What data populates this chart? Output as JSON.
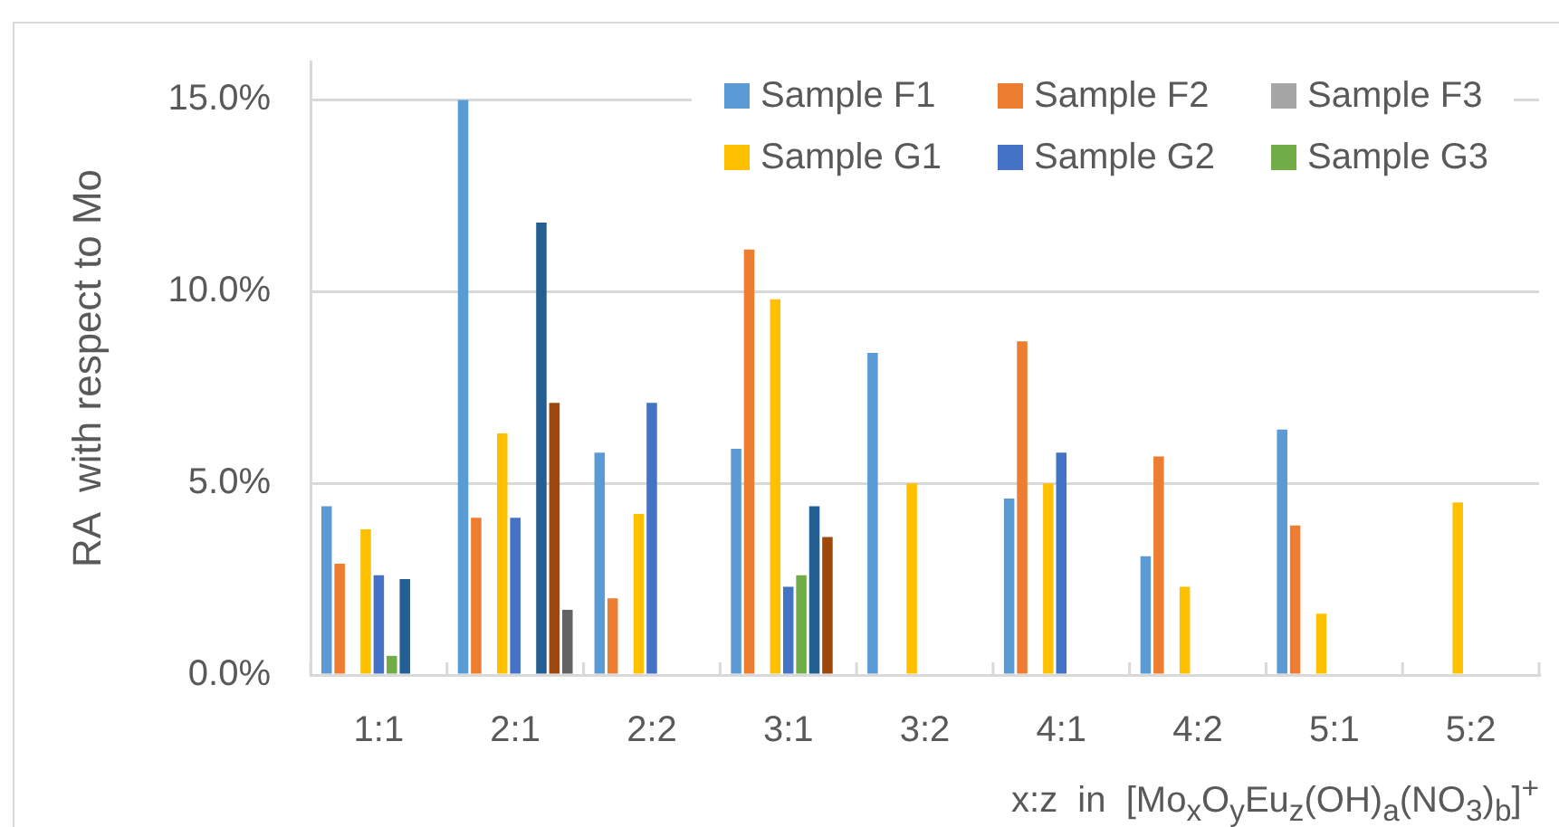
{
  "chart_data": {
    "type": "bar",
    "ylabel": "RA  with respect to Mo",
    "xlabel": "x:z  in  [Mo$_{x}$O$_{y}$Eu$_{z}$(OH)$_{a}$(NO$_{3}$)$_{b}$]$^{+}$",
    "categories": [
      "1:1",
      "2:1",
      "2:2",
      "3:1",
      "3:2",
      "4:1",
      "4:2",
      "5:1",
      "5:2"
    ],
    "series": [
      {
        "name": "Sample F1",
        "color": "#5b9bd5",
        "values": [
          4.4,
          15.0,
          5.8,
          5.9,
          8.4,
          4.6,
          3.1,
          6.4,
          null
        ]
      },
      {
        "name": "Sample F2",
        "color": "#ed7d31",
        "values": [
          2.9,
          4.1,
          2.0,
          11.1,
          null,
          8.7,
          5.7,
          3.9,
          null
        ]
      },
      {
        "name": "Sample F3",
        "color": "#a5a5a5",
        "values": [
          null,
          null,
          null,
          null,
          null,
          null,
          null,
          null,
          null
        ]
      },
      {
        "name": "Sample G1",
        "color": "#ffc000",
        "values": [
          3.8,
          6.3,
          4.2,
          9.8,
          5.0,
          5.0,
          2.3,
          1.6,
          4.5
        ]
      },
      {
        "name": "Sample G2",
        "color": "#4472c4",
        "values": [
          2.6,
          4.1,
          7.1,
          2.3,
          null,
          5.8,
          null,
          null,
          null
        ]
      },
      {
        "name": "Sample G3",
        "color": "#70ad47",
        "values": [
          0.5,
          null,
          null,
          2.6,
          null,
          null,
          null,
          null,
          null
        ]
      },
      {
        "color": "#255e91",
        "values": [
          2.5,
          11.8,
          null,
          4.4,
          null,
          null,
          null,
          null,
          null
        ]
      },
      {
        "color": "#9e480e",
        "values": [
          null,
          7.1,
          null,
          3.6,
          null,
          null,
          null,
          null,
          null
        ]
      },
      {
        "color": "#636363",
        "values": [
          null,
          1.7,
          null,
          null,
          null,
          null,
          null,
          null,
          null
        ]
      }
    ],
    "ylim": [
      0,
      16
    ],
    "yticks": [
      {
        "value": 0,
        "label": "0.0%"
      },
      {
        "value": 5,
        "label": "5.0%"
      },
      {
        "value": 10,
        "label": "10.0%"
      },
      {
        "value": 15,
        "label": "15.0%"
      }
    ],
    "grid": "y",
    "legend": "top right"
  }
}
